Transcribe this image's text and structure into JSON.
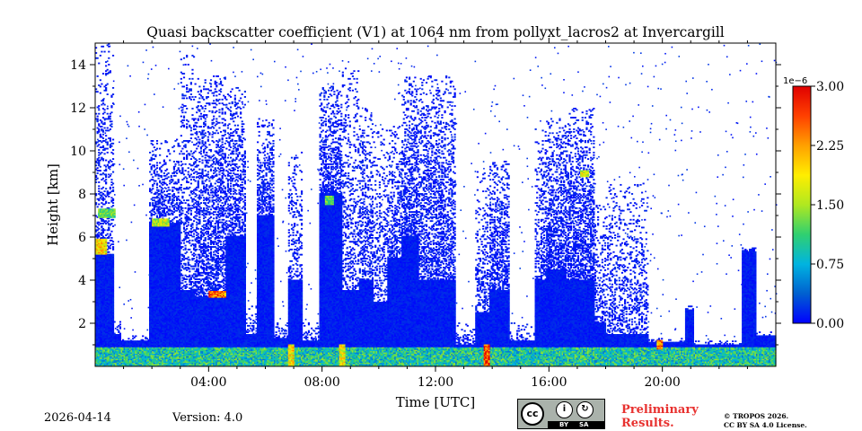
{
  "chart_data": {
    "type": "heatmap",
    "title": "Quasi backscatter coefficient (V1) at 1064 nm from pollyxt_lacros2 at Invercargill",
    "xlabel": "Time [UTC]",
    "ylabel": "Height [km]",
    "xlim": [
      0,
      24
    ],
    "ylim": [
      0,
      15
    ],
    "x_ticks": [
      {
        "value": 4,
        "label": "04:00"
      },
      {
        "value": 8,
        "label": "08:00"
      },
      {
        "value": 12,
        "label": "12:00"
      },
      {
        "value": 16,
        "label": "16:00"
      },
      {
        "value": 20,
        "label": "20:00"
      }
    ],
    "y_ticks": [
      {
        "value": 2,
        "label": "2"
      },
      {
        "value": 4,
        "label": "4"
      },
      {
        "value": 6,
        "label": "6"
      },
      {
        "value": 8,
        "label": "8"
      },
      {
        "value": 10,
        "label": "10"
      },
      {
        "value": 12,
        "label": "12"
      },
      {
        "value": 14,
        "label": "14"
      }
    ],
    "colorbar": {
      "min": 0.0,
      "max": 3.0,
      "scale_label": "1e−6",
      "ticks": [
        {
          "value": 0.0,
          "label": "0.00"
        },
        {
          "value": 0.75,
          "label": "0.75"
        },
        {
          "value": 1.5,
          "label": "1.50"
        },
        {
          "value": 2.25,
          "label": "2.25"
        },
        {
          "value": 3.0,
          "label": "3.00"
        }
      ],
      "colors": [
        "#0000ff",
        "#0060d0",
        "#00b4e0",
        "#30d070",
        "#b0e820",
        "#ffee00",
        "#ffa000",
        "#ff4000",
        "#e00000"
      ]
    },
    "profiles": [
      {
        "t0": 0.0,
        "t1": 0.65,
        "top": 15.0,
        "density": 0.35,
        "solid": 5.2
      },
      {
        "t0": 0.65,
        "t1": 0.9,
        "top": 2.2,
        "density": 0.3,
        "solid": 1.5
      },
      {
        "t0": 0.9,
        "t1": 1.9,
        "top": 1.4,
        "density": 0.2,
        "solid": 1.2
      },
      {
        "t0": 1.9,
        "t1": 3.0,
        "top": 10.5,
        "density": 0.45,
        "solid": 6.6
      },
      {
        "t0": 3.0,
        "t1": 3.5,
        "top": 14.5,
        "density": 0.35,
        "solid": 3.5
      },
      {
        "t0": 3.5,
        "t1": 4.6,
        "top": 13.5,
        "density": 0.55,
        "solid": 3.2
      },
      {
        "t0": 4.6,
        "t1": 5.3,
        "top": 13.0,
        "density": 0.5,
        "solid": 6.0
      },
      {
        "t0": 5.3,
        "t1": 5.7,
        "top": 3.0,
        "density": 0.3,
        "solid": 1.5
      },
      {
        "t0": 5.7,
        "t1": 6.3,
        "top": 11.5,
        "density": 0.55,
        "solid": 7.0
      },
      {
        "t0": 6.3,
        "t1": 6.8,
        "top": 2.0,
        "density": 0.3,
        "solid": 1.3
      },
      {
        "t0": 6.8,
        "t1": 7.3,
        "top": 10.0,
        "density": 0.3,
        "solid": 4.0
      },
      {
        "t0": 7.3,
        "t1": 7.9,
        "top": 2.0,
        "density": 0.3,
        "solid": 1.2
      },
      {
        "t0": 7.9,
        "t1": 8.7,
        "top": 13.0,
        "density": 0.55,
        "solid": 8.0
      },
      {
        "t0": 8.7,
        "t1": 9.3,
        "top": 14.0,
        "density": 0.3,
        "solid": 3.5
      },
      {
        "t0": 9.3,
        "t1": 9.8,
        "top": 12.0,
        "density": 0.45,
        "solid": 4.0
      },
      {
        "t0": 9.8,
        "t1": 10.3,
        "top": 11.0,
        "density": 0.3,
        "solid": 3.0
      },
      {
        "t0": 10.3,
        "t1": 10.8,
        "top": 11.5,
        "density": 0.45,
        "solid": 5.0
      },
      {
        "t0": 10.8,
        "t1": 11.4,
        "top": 13.5,
        "density": 0.55,
        "solid": 6.0
      },
      {
        "t0": 11.4,
        "t1": 12.7,
        "top": 13.5,
        "density": 0.5,
        "solid": 4.0
      },
      {
        "t0": 12.7,
        "t1": 13.4,
        "top": 2.0,
        "density": 0.3,
        "solid": 1.0
      },
      {
        "t0": 13.4,
        "t1": 13.9,
        "top": 9.0,
        "density": 0.35,
        "solid": 2.5
      },
      {
        "t0": 13.9,
        "t1": 14.6,
        "top": 9.5,
        "density": 0.55,
        "solid": 3.5
      },
      {
        "t0": 14.6,
        "t1": 15.5,
        "top": 2.0,
        "density": 0.3,
        "solid": 1.2
      },
      {
        "t0": 15.5,
        "t1": 15.9,
        "top": 11.0,
        "density": 0.4,
        "solid": 4.0
      },
      {
        "t0": 15.9,
        "t1": 16.6,
        "top": 11.5,
        "density": 0.6,
        "solid": 4.5
      },
      {
        "t0": 16.6,
        "t1": 17.6,
        "top": 12.0,
        "density": 0.6,
        "solid": 4.0
      },
      {
        "t0": 17.6,
        "t1": 18.0,
        "top": 7.5,
        "density": 0.4,
        "solid": 2.0
      },
      {
        "t0": 18.0,
        "t1": 19.5,
        "top": 8.5,
        "density": 0.3,
        "solid": 1.5
      },
      {
        "t0": 19.5,
        "t1": 20.8,
        "top": 1.3,
        "density": 0.3,
        "solid": 1.1
      },
      {
        "t0": 20.8,
        "t1": 21.1,
        "top": 2.8,
        "density": 0.4,
        "solid": 2.6
      },
      {
        "t0": 21.1,
        "t1": 22.8,
        "top": 1.2,
        "density": 0.3,
        "solid": 1.0
      },
      {
        "t0": 22.8,
        "t1": 23.3,
        "top": 5.5,
        "density": 0.55,
        "solid": 5.3
      },
      {
        "t0": 23.3,
        "t1": 24.0,
        "top": 1.6,
        "density": 0.3,
        "solid": 1.4
      }
    ],
    "features": [
      {
        "t0": 0.1,
        "t1": 0.7,
        "z0": 6.9,
        "z1": 7.3,
        "value": 1.3
      },
      {
        "t0": 0.0,
        "t1": 0.4,
        "z0": 5.2,
        "z1": 5.9,
        "value": 2.0
      },
      {
        "t0": 2.0,
        "t1": 2.6,
        "z0": 6.5,
        "z1": 6.8,
        "value": 1.7
      },
      {
        "t0": 4.0,
        "t1": 4.6,
        "z0": 3.2,
        "z1": 3.5,
        "value": 2.6
      },
      {
        "t0": 8.1,
        "t1": 8.4,
        "z0": 7.5,
        "z1": 7.9,
        "value": 1.3
      },
      {
        "t0": 17.1,
        "t1": 17.4,
        "z0": 8.8,
        "z1": 9.1,
        "value": 1.8
      },
      {
        "t0": 13.7,
        "t1": 13.9,
        "z0": 0.0,
        "z1": 1.0,
        "value": 2.8
      },
      {
        "t0": 6.8,
        "t1": 7.0,
        "z0": 0.0,
        "z1": 1.0,
        "value": 2.0
      },
      {
        "t0": 8.6,
        "t1": 8.8,
        "z0": 0.0,
        "z1": 1.0,
        "value": 1.9
      },
      {
        "t0": 19.8,
        "t1": 20.0,
        "z0": 0.8,
        "z1": 1.2,
        "value": 2.6
      }
    ]
  },
  "footer": {
    "date": "2026-04-14",
    "version": "Version: 4.0",
    "license_badge": {
      "cc": "cc",
      "by": "BY",
      "sa": "SA"
    },
    "preliminary_line1": "Preliminary",
    "preliminary_line2": "Results.",
    "copyright_line1": "© TROPOS 2026.",
    "copyright_line2": "CC BY SA 4.0 License."
  }
}
